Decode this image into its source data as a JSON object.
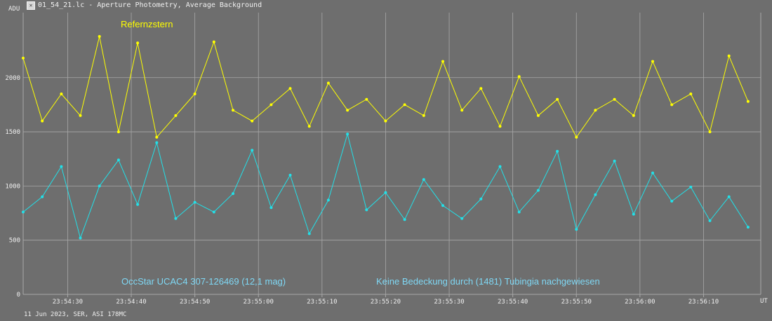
{
  "window": {
    "title": "01_54_21.lc - Aperture Photometry, Average Background"
  },
  "footer": {
    "caption": "11 Jun 2023, SER, ASI 178MC"
  },
  "colors": {
    "background": "#6e6e6e",
    "grid": "#a8a8a8",
    "series_reference": "#ffff00",
    "series_target": "#22e0e8",
    "annotation_target": "#7fd8f5",
    "text": "#f0f0f0"
  },
  "chart_data": {
    "type": "line",
    "title": "",
    "ylabel": "ADU",
    "xlabel": "UT",
    "ylim": [
      0,
      2600
    ],
    "yticks": [
      0,
      500,
      1000,
      1500,
      2000
    ],
    "xlim": [
      "23:54:23",
      "23:56:19"
    ],
    "xticks": [
      "23:54:30",
      "23:54:40",
      "23:54:50",
      "23:55:00",
      "23:55:10",
      "23:55:20",
      "23:55:30",
      "23:55:40",
      "23:55:50",
      "23:56:00",
      "23:56:10"
    ],
    "grid": true,
    "annotations": [
      {
        "text": "Refernzstern",
        "color": "#ffff00"
      },
      {
        "text": "OccStar  UCAC4 307-126469  (12,1 mag)",
        "color": "#7fd8f5"
      },
      {
        "text": "Keine Bedeckung durch (1481) Tubingia nachgewiesen",
        "color": "#7fd8f5"
      }
    ],
    "series": [
      {
        "color": "#ffff00",
        "x": [
          "23:54:23",
          "23:54:26",
          "23:54:29",
          "23:54:32",
          "23:54:35",
          "23:54:38",
          "23:54:41",
          "23:54:44",
          "23:54:47",
          "23:54:50",
          "23:54:53",
          "23:54:56",
          "23:54:59",
          "23:55:02",
          "23:55:05",
          "23:55:08",
          "23:55:11",
          "23:55:14",
          "23:55:17",
          "23:55:20",
          "23:55:23",
          "23:55:26",
          "23:55:29",
          "23:55:32",
          "23:55:35",
          "23:55:38",
          "23:55:41",
          "23:55:44",
          "23:55:47",
          "23:55:50",
          "23:55:53",
          "23:55:56",
          "23:55:59",
          "23:56:02",
          "23:56:05",
          "23:56:08",
          "23:56:11",
          "23:56:14",
          "23:56:17"
        ],
        "values": [
          2180,
          1600,
          1850,
          1650,
          2380,
          1500,
          2320,
          1450,
          1650,
          1850,
          2330,
          1700,
          1600,
          1750,
          1900,
          1550,
          1950,
          1700,
          1800,
          1600,
          1750,
          1650,
          2150,
          1700,
          1900,
          1550,
          2010,
          1650,
          1800,
          1450,
          1700,
          1800,
          1650,
          2150,
          1750,
          1850,
          1500,
          2200,
          1780
        ]
      },
      {
        "color": "#22e0e8",
        "x": [
          "23:54:23",
          "23:54:26",
          "23:54:29",
          "23:54:32",
          "23:54:35",
          "23:54:38",
          "23:54:41",
          "23:54:44",
          "23:54:47",
          "23:54:50",
          "23:54:53",
          "23:54:56",
          "23:54:59",
          "23:55:02",
          "23:55:05",
          "23:55:08",
          "23:55:11",
          "23:55:14",
          "23:55:17",
          "23:55:20",
          "23:55:23",
          "23:55:26",
          "23:55:29",
          "23:55:32",
          "23:55:35",
          "23:55:38",
          "23:55:41",
          "23:55:44",
          "23:55:47",
          "23:55:50",
          "23:55:53",
          "23:55:56",
          "23:55:59",
          "23:56:02",
          "23:56:05",
          "23:56:08",
          "23:56:11",
          "23:56:14",
          "23:56:17"
        ],
        "values": [
          760,
          900,
          1180,
          520,
          1000,
          1240,
          830,
          1400,
          700,
          850,
          760,
          930,
          1330,
          800,
          1100,
          560,
          870,
          1480,
          780,
          940,
          690,
          1060,
          820,
          700,
          880,
          1180,
          760,
          960,
          1320,
          600,
          920,
          1230,
          740,
          1120,
          860,
          990,
          680,
          900,
          620
        ]
      }
    ]
  }
}
